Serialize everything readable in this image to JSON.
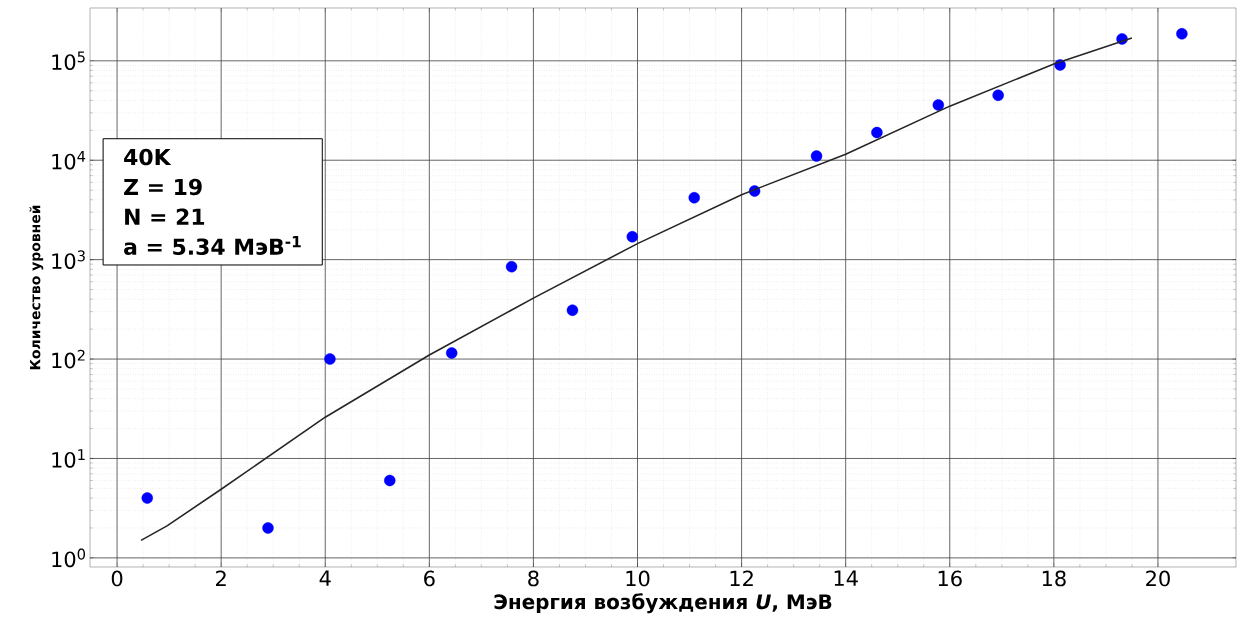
{
  "chart_data": {
    "type": "scatter",
    "xlabel": "Энергия возбуждения *U*, МэВ",
    "ylabel": "Количество уровней",
    "annotations": [
      "40K",
      "Z = 19",
      "N = 21",
      "a = 5.34 МэВ$^{-1}$"
    ],
    "log": "y",
    "grid": true,
    "marker": "circle",
    "xlim": [
      -0.52,
      21.5
    ],
    "ylim": [
      0.81,
      340000
    ],
    "xticks": [
      0,
      2,
      4,
      6,
      8,
      10,
      12,
      14,
      16,
      18,
      20
    ],
    "yticks": [
      {
        "value": 1,
        "label": "10$^{0}$"
      },
      {
        "value": 10,
        "label": "10$^{1}$"
      },
      {
        "value": 100,
        "label": "10$^{2}$"
      },
      {
        "value": 1000,
        "label": "10$^{3}$"
      },
      {
        "value": 10000,
        "label": "10$^{4}$"
      },
      {
        "value": 100000,
        "label": "10$^{5}$"
      }
    ],
    "series": [
      {
        "color": "#0000ff",
        "x": [
          0.58,
          2.9,
          4.09,
          5.24,
          6.43,
          7.58,
          8.75,
          9.9,
          11.09,
          12.25,
          13.44,
          14.6,
          15.78,
          16.93,
          18.12,
          19.31,
          20.46
        ],
        "values": [
          4,
          2,
          100,
          6,
          115,
          850,
          310,
          1700,
          4200,
          4900,
          11000,
          19000,
          36000,
          45000,
          91000,
          166000,
          187000
        ]
      },
      {
        "type": "line",
        "color": "#262626",
        "marker": "none",
        "x": [
          0.46,
          0.96,
          2,
          4,
          6,
          8,
          10,
          12,
          14,
          16,
          18,
          19.5
        ],
        "values": [
          1.5,
          2.1,
          4.9,
          26,
          110,
          410,
          1450,
          4500,
          11500,
          35000,
          93000,
          170000
        ]
      }
    ]
  }
}
